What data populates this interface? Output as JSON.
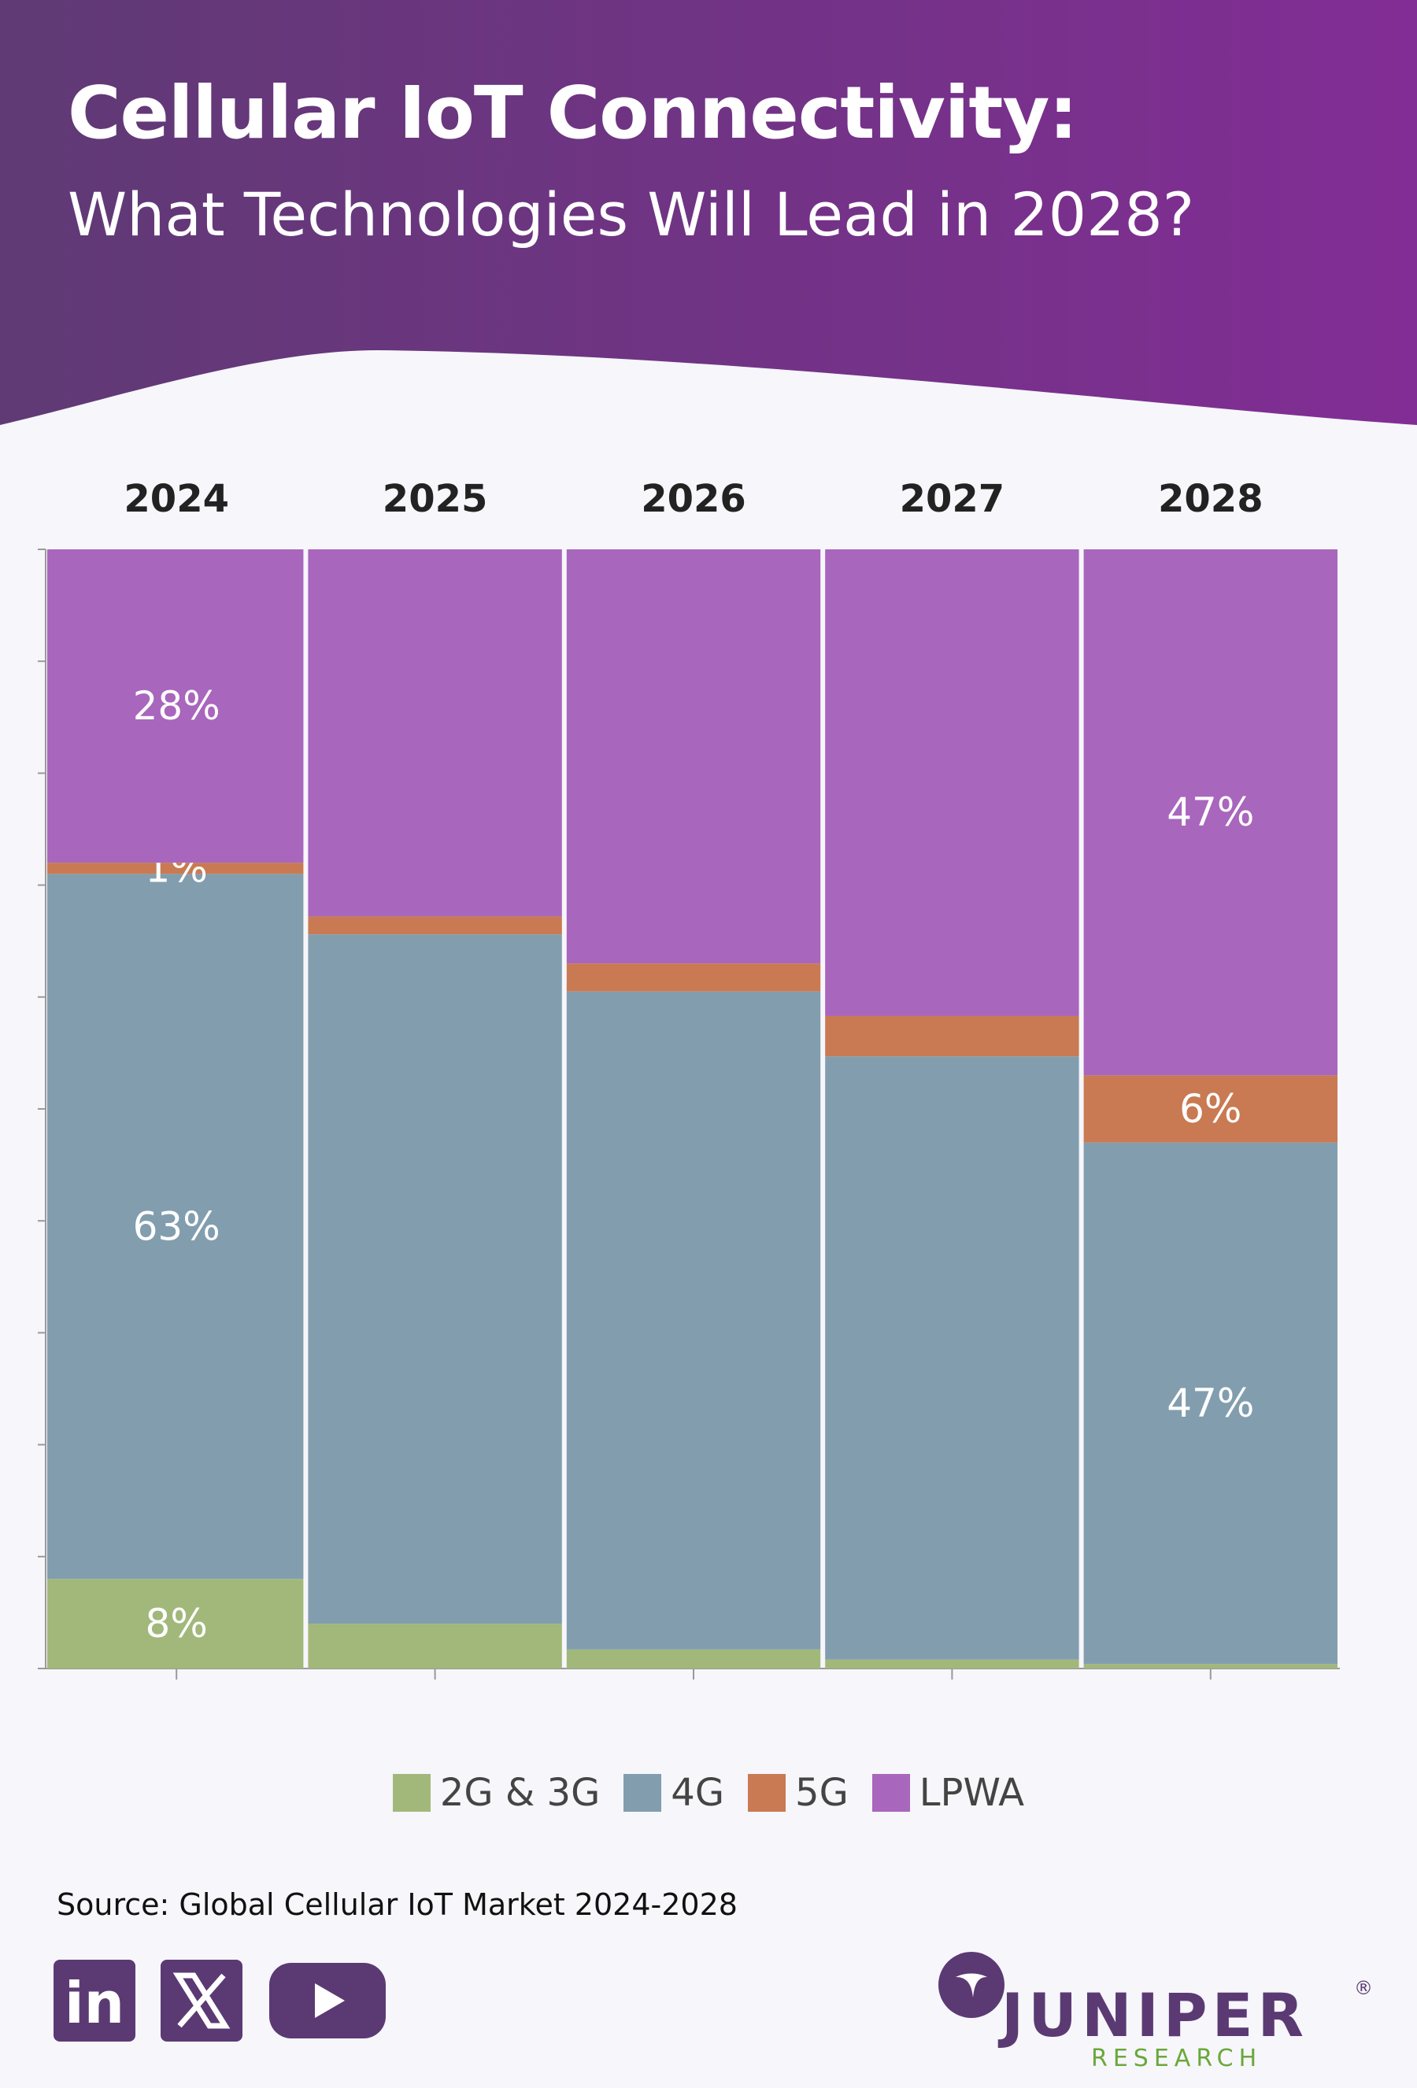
{
  "header": {
    "title": "Cellular IoT Connectivity:",
    "subtitle": "What Technologies Will Lead in 2028?"
  },
  "colors": {
    "header_start": "#5f3a74",
    "header_end": "#822d95",
    "background": "#f6f6fb",
    "series_2g3g": "#a2b87a",
    "series_4g": "#829eae",
    "series_5g": "#c97a52",
    "series_lpwa": "#a966bd",
    "social_purple": "#5b3a73",
    "brand_green": "#6aa83a"
  },
  "chart_data": {
    "type": "bar",
    "stacked": true,
    "categories": [
      "2024",
      "2025",
      "2026",
      "2027",
      "2028"
    ],
    "series": [
      {
        "name": "2G & 3G",
        "values": [
          8,
          4,
          1.7,
          0.8,
          0.4
        ]
      },
      {
        "name": "4G",
        "values": [
          63,
          61.6,
          58.8,
          53.9,
          46.6
        ]
      },
      {
        "name": "5G",
        "values": [
          1,
          1.6,
          2.5,
          3.6,
          6
        ]
      },
      {
        "name": "LPWA",
        "values": [
          28,
          32.8,
          37,
          41.7,
          47
        ]
      }
    ],
    "data_labels": [
      {
        "category": "2024",
        "series": "2G & 3G",
        "text": "8%"
      },
      {
        "category": "2024",
        "series": "4G",
        "text": "63%"
      },
      {
        "category": "2024",
        "series": "5G",
        "text": "1%"
      },
      {
        "category": "2024",
        "series": "LPWA",
        "text": "28%"
      },
      {
        "category": "2028",
        "series": "4G",
        "text": "47%"
      },
      {
        "category": "2028",
        "series": "5G",
        "text": "6%"
      },
      {
        "category": "2028",
        "series": "LPWA",
        "text": "47%"
      }
    ],
    "ylim": [
      0,
      100
    ],
    "legend_position": "bottom",
    "grid": false
  },
  "legend": {
    "items": [
      {
        "label": "2G & 3G",
        "color": "#a2b87a"
      },
      {
        "label": "4G",
        "color": "#829eae"
      },
      {
        "label": "5G",
        "color": "#c97a52"
      },
      {
        "label": "LPWA",
        "color": "#a966bd"
      }
    ]
  },
  "source": "Source: Global Cellular IoT Market 2024-2028",
  "social": {
    "icons": [
      "linkedin-icon",
      "x-icon",
      "youtube-icon"
    ],
    "linkedin_text": "in"
  },
  "brand": {
    "name": "JUNIPER",
    "sub": "RESEARCH",
    "registered": "®"
  }
}
